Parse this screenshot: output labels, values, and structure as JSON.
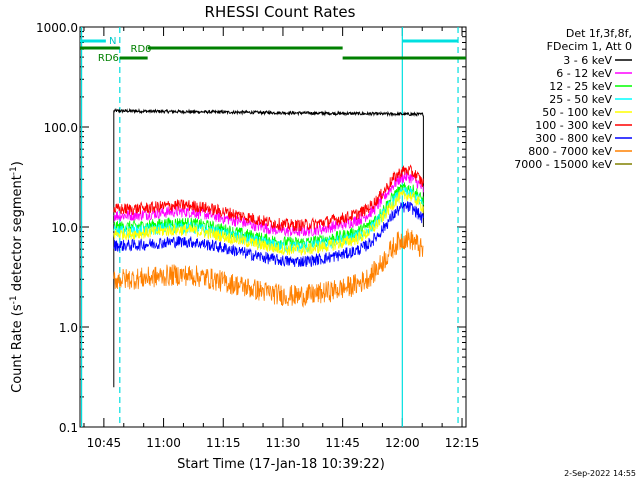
{
  "chart_data": {
    "type": "line",
    "title": "RHESSI Count Rates",
    "xlabel": "Start Time (17-Jan-18 10:39:22)",
    "ylabel_main": "Count Rate (s",
    "ylabel_sup": "-1",
    "ylabel_rest": " detector segment",
    "ylabel_sup2": "-1",
    "ylabel_end": ")",
    "yscale": "log",
    "ylim": [
      0.1,
      1000
    ],
    "xlim_minutes": [
      -6,
      91
    ],
    "x_tick_labels": [
      "10:45",
      "11:00",
      "11:15",
      "11:30",
      "11:45",
      "12:00",
      "12:15"
    ],
    "x_tick_minutes": [
      0,
      15,
      30,
      45,
      60,
      75,
      90
    ],
    "y_tick_labels": [
      "0.1",
      "1.0",
      "10.0",
      "100.0",
      "1000.0"
    ],
    "y_tick_values": [
      0.1,
      1,
      10,
      100,
      1000
    ],
    "legend_header": [
      "Det 1f,3f,8f,",
      "FDecim 1, Att 0"
    ],
    "legend_placement": "right",
    "series": [
      {
        "name": "3 - 6 keV",
        "color": "#000000",
        "level": 145
      },
      {
        "name": "6 - 12 keV",
        "color": "#ff00ff",
        "level": 13
      },
      {
        "name": "12 - 25 keV",
        "color": "#00ff00",
        "level": 10
      },
      {
        "name": "25 - 50 keV",
        "color": "#00ffff",
        "level": 9
      },
      {
        "name": "50 - 100 keV",
        "color": "#ffff00",
        "level": 8.5
      },
      {
        "name": "100 - 300 keV",
        "color": "#ff0000",
        "level": 15
      },
      {
        "name": "300 - 800 keV",
        "color": "#0000ff",
        "level": 6.5
      },
      {
        "name": "800 - 7000 keV",
        "color": "#ff8000",
        "level": 3
      },
      {
        "name": "7000 - 15000 keV",
        "color": "#808000",
        "level": 0
      }
    ],
    "annotations": {
      "n_label": "N",
      "rd0_label": "RD0",
      "rd6_label": "RD6"
    },
    "footer_date": "2-Sep-2022 14:55"
  }
}
